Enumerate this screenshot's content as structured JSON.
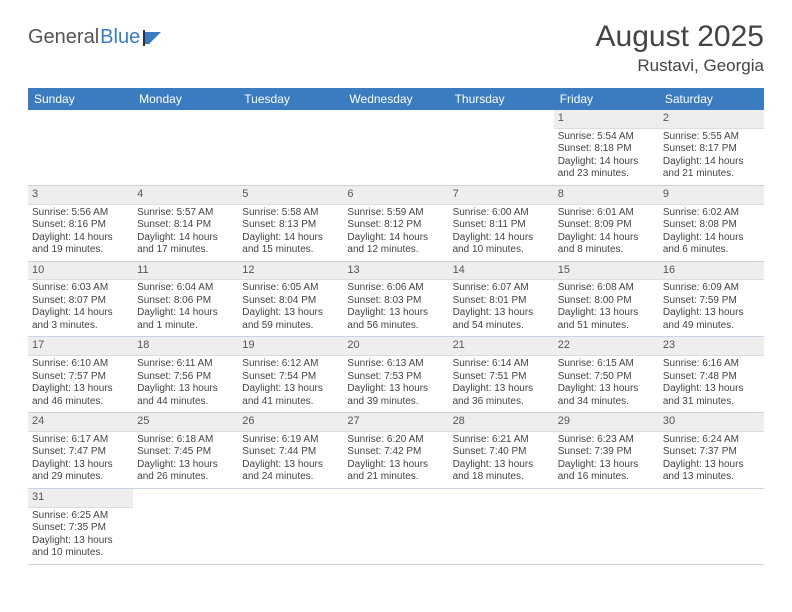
{
  "logo": {
    "text1": "General",
    "text2": "Blue"
  },
  "title": {
    "month": "August 2025",
    "location": "Rustavi, Georgia"
  },
  "colors": {
    "header_bg": "#3b7bbf",
    "header_fg": "#ffffff",
    "daynum_bg": "#eeeeee",
    "row_border": "#c8d4df",
    "text": "#444444"
  },
  "weekdays": [
    "Sunday",
    "Monday",
    "Tuesday",
    "Wednesday",
    "Thursday",
    "Friday",
    "Saturday"
  ],
  "weeks": [
    [
      null,
      null,
      null,
      null,
      null,
      {
        "n": "1",
        "sr": "Sunrise: 5:54 AM",
        "ss": "Sunset: 8:18 PM",
        "dl": "Daylight: 14 hours and 23 minutes."
      },
      {
        "n": "2",
        "sr": "Sunrise: 5:55 AM",
        "ss": "Sunset: 8:17 PM",
        "dl": "Daylight: 14 hours and 21 minutes."
      }
    ],
    [
      {
        "n": "3",
        "sr": "Sunrise: 5:56 AM",
        "ss": "Sunset: 8:16 PM",
        "dl": "Daylight: 14 hours and 19 minutes."
      },
      {
        "n": "4",
        "sr": "Sunrise: 5:57 AM",
        "ss": "Sunset: 8:14 PM",
        "dl": "Daylight: 14 hours and 17 minutes."
      },
      {
        "n": "5",
        "sr": "Sunrise: 5:58 AM",
        "ss": "Sunset: 8:13 PM",
        "dl": "Daylight: 14 hours and 15 minutes."
      },
      {
        "n": "6",
        "sr": "Sunrise: 5:59 AM",
        "ss": "Sunset: 8:12 PM",
        "dl": "Daylight: 14 hours and 12 minutes."
      },
      {
        "n": "7",
        "sr": "Sunrise: 6:00 AM",
        "ss": "Sunset: 8:11 PM",
        "dl": "Daylight: 14 hours and 10 minutes."
      },
      {
        "n": "8",
        "sr": "Sunrise: 6:01 AM",
        "ss": "Sunset: 8:09 PM",
        "dl": "Daylight: 14 hours and 8 minutes."
      },
      {
        "n": "9",
        "sr": "Sunrise: 6:02 AM",
        "ss": "Sunset: 8:08 PM",
        "dl": "Daylight: 14 hours and 6 minutes."
      }
    ],
    [
      {
        "n": "10",
        "sr": "Sunrise: 6:03 AM",
        "ss": "Sunset: 8:07 PM",
        "dl": "Daylight: 14 hours and 3 minutes."
      },
      {
        "n": "11",
        "sr": "Sunrise: 6:04 AM",
        "ss": "Sunset: 8:06 PM",
        "dl": "Daylight: 14 hours and 1 minute."
      },
      {
        "n": "12",
        "sr": "Sunrise: 6:05 AM",
        "ss": "Sunset: 8:04 PM",
        "dl": "Daylight: 13 hours and 59 minutes."
      },
      {
        "n": "13",
        "sr": "Sunrise: 6:06 AM",
        "ss": "Sunset: 8:03 PM",
        "dl": "Daylight: 13 hours and 56 minutes."
      },
      {
        "n": "14",
        "sr": "Sunrise: 6:07 AM",
        "ss": "Sunset: 8:01 PM",
        "dl": "Daylight: 13 hours and 54 minutes."
      },
      {
        "n": "15",
        "sr": "Sunrise: 6:08 AM",
        "ss": "Sunset: 8:00 PM",
        "dl": "Daylight: 13 hours and 51 minutes."
      },
      {
        "n": "16",
        "sr": "Sunrise: 6:09 AM",
        "ss": "Sunset: 7:59 PM",
        "dl": "Daylight: 13 hours and 49 minutes."
      }
    ],
    [
      {
        "n": "17",
        "sr": "Sunrise: 6:10 AM",
        "ss": "Sunset: 7:57 PM",
        "dl": "Daylight: 13 hours and 46 minutes."
      },
      {
        "n": "18",
        "sr": "Sunrise: 6:11 AM",
        "ss": "Sunset: 7:56 PM",
        "dl": "Daylight: 13 hours and 44 minutes."
      },
      {
        "n": "19",
        "sr": "Sunrise: 6:12 AM",
        "ss": "Sunset: 7:54 PM",
        "dl": "Daylight: 13 hours and 41 minutes."
      },
      {
        "n": "20",
        "sr": "Sunrise: 6:13 AM",
        "ss": "Sunset: 7:53 PM",
        "dl": "Daylight: 13 hours and 39 minutes."
      },
      {
        "n": "21",
        "sr": "Sunrise: 6:14 AM",
        "ss": "Sunset: 7:51 PM",
        "dl": "Daylight: 13 hours and 36 minutes."
      },
      {
        "n": "22",
        "sr": "Sunrise: 6:15 AM",
        "ss": "Sunset: 7:50 PM",
        "dl": "Daylight: 13 hours and 34 minutes."
      },
      {
        "n": "23",
        "sr": "Sunrise: 6:16 AM",
        "ss": "Sunset: 7:48 PM",
        "dl": "Daylight: 13 hours and 31 minutes."
      }
    ],
    [
      {
        "n": "24",
        "sr": "Sunrise: 6:17 AM",
        "ss": "Sunset: 7:47 PM",
        "dl": "Daylight: 13 hours and 29 minutes."
      },
      {
        "n": "25",
        "sr": "Sunrise: 6:18 AM",
        "ss": "Sunset: 7:45 PM",
        "dl": "Daylight: 13 hours and 26 minutes."
      },
      {
        "n": "26",
        "sr": "Sunrise: 6:19 AM",
        "ss": "Sunset: 7:44 PM",
        "dl": "Daylight: 13 hours and 24 minutes."
      },
      {
        "n": "27",
        "sr": "Sunrise: 6:20 AM",
        "ss": "Sunset: 7:42 PM",
        "dl": "Daylight: 13 hours and 21 minutes."
      },
      {
        "n": "28",
        "sr": "Sunrise: 6:21 AM",
        "ss": "Sunset: 7:40 PM",
        "dl": "Daylight: 13 hours and 18 minutes."
      },
      {
        "n": "29",
        "sr": "Sunrise: 6:23 AM",
        "ss": "Sunset: 7:39 PM",
        "dl": "Daylight: 13 hours and 16 minutes."
      },
      {
        "n": "30",
        "sr": "Sunrise: 6:24 AM",
        "ss": "Sunset: 7:37 PM",
        "dl": "Daylight: 13 hours and 13 minutes."
      }
    ],
    [
      {
        "n": "31",
        "sr": "Sunrise: 6:25 AM",
        "ss": "Sunset: 7:35 PM",
        "dl": "Daylight: 13 hours and 10 minutes."
      },
      null,
      null,
      null,
      null,
      null,
      null
    ]
  ]
}
